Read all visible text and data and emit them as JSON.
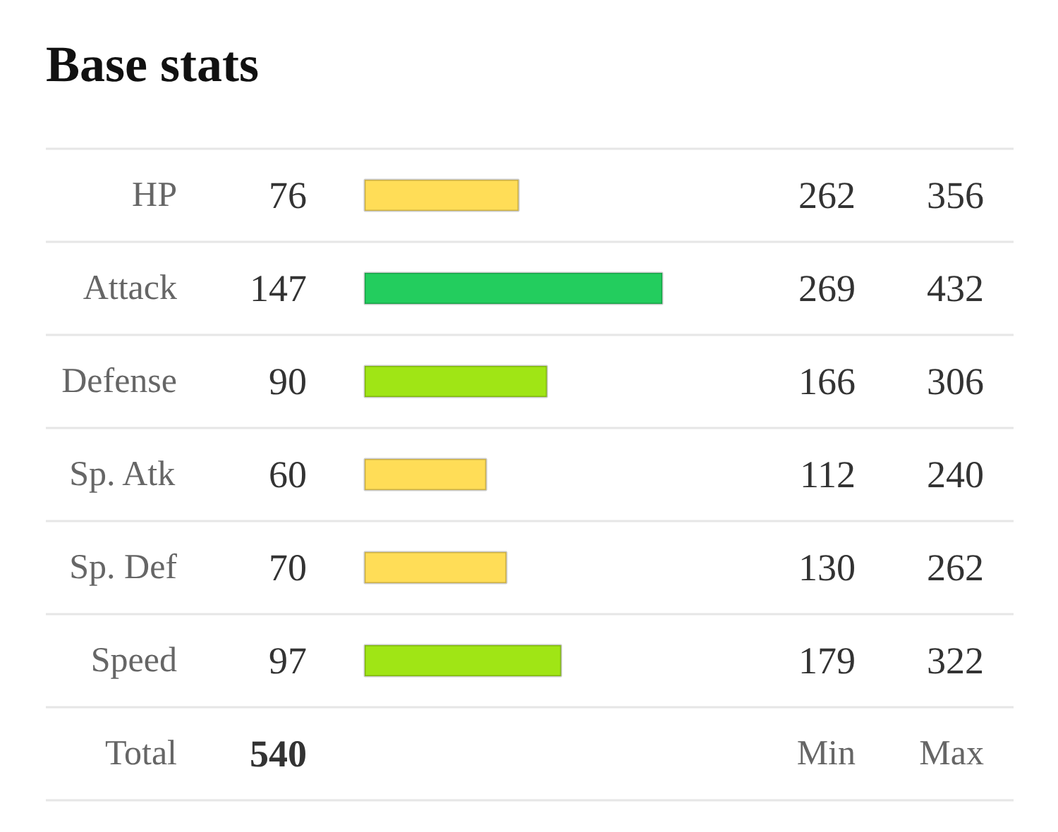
{
  "chart_data": {
    "type": "bar",
    "orientation": "horizontal",
    "title": "Base stats",
    "categories": [
      "HP",
      "Attack",
      "Defense",
      "Sp. Atk",
      "Sp. Def",
      "Speed"
    ],
    "values": [
      76,
      147,
      90,
      60,
      70,
      97
    ],
    "colors": [
      "#ffdd57",
      "#23cd5e",
      "#a0e515",
      "#ffdd57",
      "#ffdd57",
      "#a0e515"
    ],
    "data_labels": true,
    "annotations": [
      "262",
      "356",
      "269",
      "432",
      "166",
      "306",
      "112",
      "240",
      "130",
      "262",
      "179",
      "322",
      "Total",
      "540",
      "Min",
      "Max"
    ]
  }
}
